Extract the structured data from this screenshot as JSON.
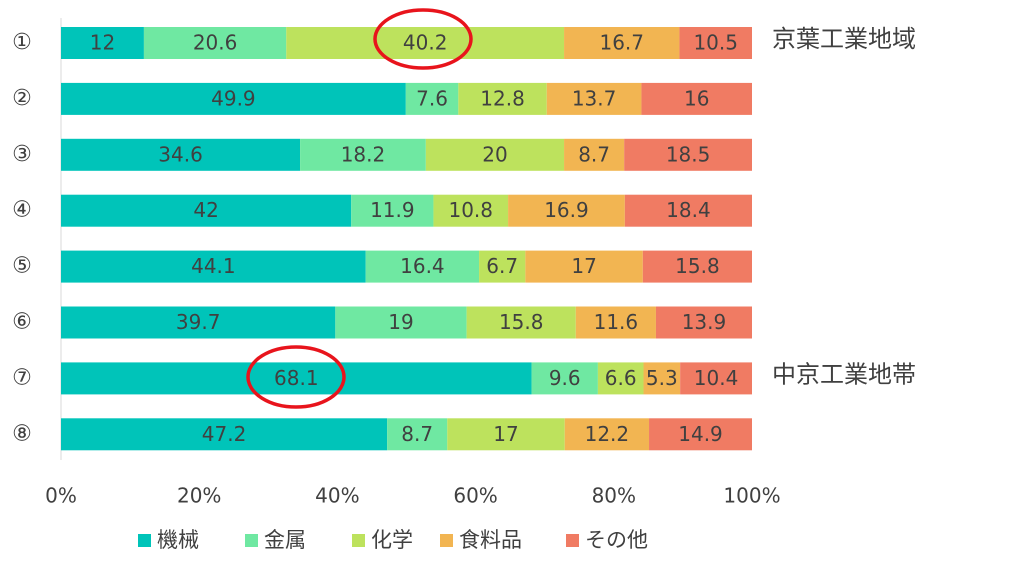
{
  "chart_data": {
    "type": "stacked-barh",
    "categories": [
      "①",
      "②",
      "③",
      "④",
      "⑤",
      "⑥",
      "⑦",
      "⑧"
    ],
    "series": [
      {
        "name": "機械",
        "color": "#00c4b9",
        "values": [
          12,
          49.9,
          34.6,
          42,
          44.1,
          39.7,
          68.1,
          47.2
        ]
      },
      {
        "name": "金属",
        "color": "#6fe8a2",
        "values": [
          20.6,
          7.6,
          18.2,
          11.9,
          16.4,
          19,
          9.6,
          8.7
        ]
      },
      {
        "name": "化学",
        "color": "#bde25d",
        "values": [
          40.2,
          12.8,
          20,
          10.8,
          6.7,
          15.8,
          6.6,
          17
        ]
      },
      {
        "name": "食料品",
        "color": "#f2b552",
        "values": [
          16.7,
          13.7,
          8.7,
          16.9,
          17,
          11.6,
          5.3,
          12.2
        ]
      },
      {
        "name": "その他",
        "color": "#f07b63",
        "values": [
          10.5,
          16,
          18.5,
          18.4,
          15.8,
          13.9,
          10.4,
          14.9
        ]
      }
    ],
    "xlim": [
      0,
      100
    ],
    "xticks": [
      {
        "value": 0,
        "label": "0%"
      },
      {
        "value": 20,
        "label": "20%"
      },
      {
        "value": 40,
        "label": "40%"
      },
      {
        "value": 60,
        "label": "60%"
      },
      {
        "value": 80,
        "label": "80%"
      },
      {
        "value": 100,
        "label": "100%"
      }
    ],
    "grid": false,
    "legend": "bottom",
    "annotations": [
      {
        "text": "京葉工業地域",
        "color": "#e8141c"
      },
      {
        "text": "中京工業地帯",
        "color": "#000000"
      }
    ]
  }
}
